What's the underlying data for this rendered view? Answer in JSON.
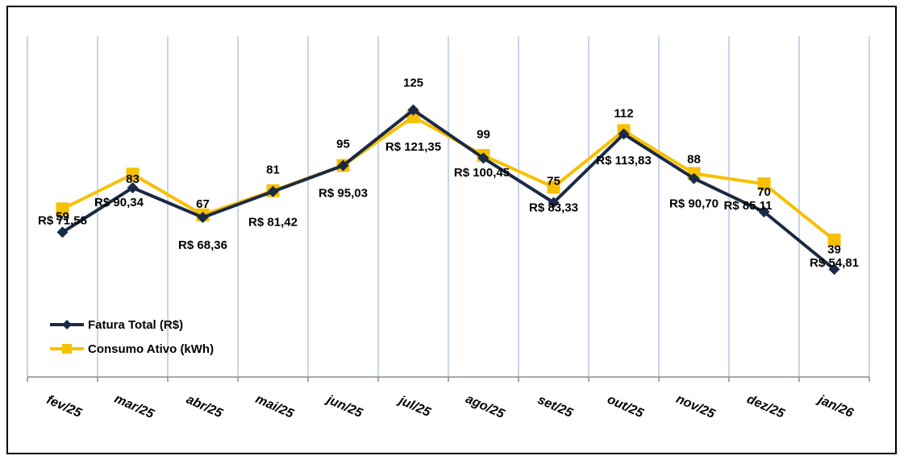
{
  "chart_data": {
    "type": "line",
    "categories": [
      "fev/25",
      "mar/25",
      "abr/25",
      "mai/25",
      "jun/25",
      "jul/25",
      "ago/25",
      "set/25",
      "out/25",
      "nov/25",
      "dez/25",
      "jan/26"
    ],
    "series": [
      {
        "name": "Fatura Total (R$)",
        "color": "#1b2a44",
        "marker": "diamond",
        "values": [
          59,
          83,
          67,
          81,
          95,
          125,
          99,
          75,
          112,
          88,
          70,
          39
        ],
        "labels": [
          "59",
          "83",
          "67",
          "81",
          "95",
          "125",
          "99",
          "75",
          "112",
          "88",
          "70",
          "39"
        ]
      },
      {
        "name": "Consumo Ativo (kWh)",
        "color": "#f7c000",
        "marker": "square",
        "values": [
          71.58,
          90.34,
          68.36,
          81.42,
          95.03,
          121.35,
          100.45,
          83.33,
          113.83,
          90.7,
          85.11,
          54.81
        ],
        "labels": [
          "R$ 71,58",
          "R$ 90,34",
          "R$ 68,36",
          "R$ 81,42",
          "R$ 95,03",
          "R$ 121,35",
          "R$ 100,45",
          "R$ 83,33",
          "R$ 113,83",
          "R$ 90,70",
          "R$ 85,11",
          "R$ 54,81"
        ]
      }
    ],
    "legend_position": "bottom-left",
    "grid": "vertical",
    "gridline_color": "#b4c6e7"
  }
}
